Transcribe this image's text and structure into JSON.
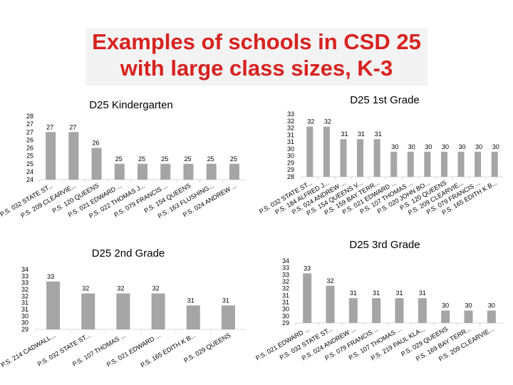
{
  "slide": {
    "title_line1": "Examples of schools in CSD 25",
    "title_line2": "with large class sizes, K-3"
  },
  "colors": {
    "title": "#d8221f",
    "bar": "#a5a5a5",
    "bar_light": "#bdbdbd",
    "grid": "#d9d9d9"
  },
  "chart_data": [
    {
      "type": "bar",
      "title": "D25 Kindergarten",
      "categories": [
        "P.S. 032 STATE ST...",
        "P.S. 209 CLEARVIE...",
        "P.S. 120 QUEENS",
        "P.S. 021 EDWARD ...",
        "P.S. 022 THOMAS J...",
        "P.S. 079 FRANCIS ...",
        "P.S. 154 QUEENS",
        "P.S. 163 FLUSHING...",
        "P.S. 024 ANDREW ..."
      ],
      "values": [
        27,
        27,
        26,
        25,
        25,
        25,
        25,
        25,
        25
      ],
      "value_labels": [
        "27",
        "27",
        "26",
        "25",
        "25",
        "25",
        "25",
        "25",
        "25"
      ],
      "yticks": [
        "24",
        "24",
        "25",
        "25",
        "26",
        "26",
        "27",
        "27",
        "28"
      ],
      "ylim": [
        24,
        28
      ]
    },
    {
      "type": "bar",
      "title": "D25 1st Grade",
      "categories": [
        "P.S. 032 STATE ST...",
        "P.S. 184 ALFRED J...",
        "P.S. 024 ANDREW ...",
        "P.S. 154 QUEENS V...",
        "P.S. 159 BAY TERR...",
        "P.S. 021 EDWARD ...",
        "P.S. 107 THOMAS ...",
        "P.S. 020 JOHN BO...",
        "P.S. 120 QUEENS",
        "P.S. 209 CLEARVIE...",
        "P.S. 079 FRANCIS ...",
        "P.S. 165 EDITH K B..."
      ],
      "values": [
        32,
        32,
        31,
        31,
        31,
        30,
        30,
        30,
        30,
        30,
        30,
        30
      ],
      "value_labels": [
        "32",
        "32",
        "31",
        "31",
        "31",
        "30",
        "30",
        "30",
        "30",
        "30",
        "30",
        "30"
      ],
      "yticks": [
        "28",
        "29",
        "29",
        "30",
        "30",
        "31",
        "31",
        "32",
        "32",
        "33"
      ],
      "ylim": [
        28,
        33
      ]
    },
    {
      "type": "bar",
      "title": "D25 2nd Grade",
      "categories": [
        "P.S. 214 CADWALL...",
        "P.S. 032 STATE ST...",
        "P.S. 107 THOMAS ...",
        "P.S. 021 EDWARD ...",
        "P.S. 165 EDITH K B...",
        "P.S. 029 QUEENS"
      ],
      "values": [
        33,
        32,
        32,
        32,
        31,
        31
      ],
      "value_labels": [
        "33",
        "32",
        "32",
        "32",
        "31",
        "31"
      ],
      "yticks": [
        "29",
        "30",
        "30",
        "31",
        "31",
        "32",
        "32",
        "33",
        "33",
        "34"
      ],
      "ylim": [
        29,
        34
      ]
    },
    {
      "type": "bar",
      "title": "D25 3rd Grade",
      "categories": [
        "P.S. 021 EDWARD ...",
        "P.S. 032 STATE ST...",
        "P.S. 024 ANDREW ...",
        "P.S. 079 FRANCIS ...",
        "P.S. 107 THOMAS ...",
        "P.S. 219 PAUL KLA...",
        "P.S. 029 QUEENS",
        "P.S. 169 BAY TERR...",
        "P.S. 209 CLEARVIE..."
      ],
      "values": [
        33,
        32,
        31,
        31,
        31,
        31,
        30,
        30,
        30
      ],
      "value_labels": [
        "33",
        "32",
        "31",
        "31",
        "31",
        "31",
        "30",
        "30",
        "30"
      ],
      "yticks": [
        "29",
        "30",
        "30",
        "31",
        "31",
        "32",
        "32",
        "33",
        "33",
        "34"
      ],
      "ylim": [
        29,
        34
      ]
    }
  ]
}
